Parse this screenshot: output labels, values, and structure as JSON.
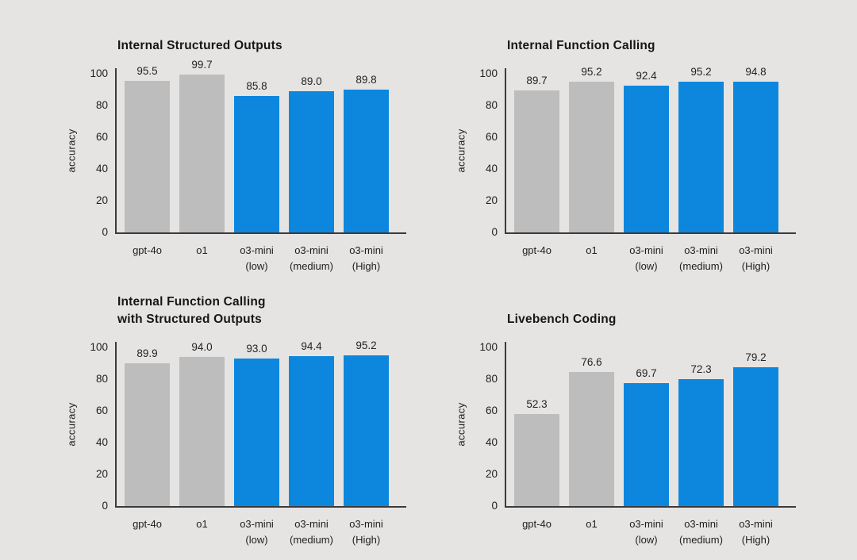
{
  "page": {
    "background_color": "#e5e4e2",
    "text_color": "#1e1e1e",
    "axis_color": "#3b3b3b",
    "bar_colors": {
      "gray": "#bdbdbd",
      "blue": "#0d87de"
    }
  },
  "chart_data": [
    {
      "id": "internal-structured-outputs",
      "type": "bar",
      "title_lines": [
        "Internal Structured Outputs"
      ],
      "ylabel": "accuracy",
      "xlabel": "",
      "ylim": [
        0,
        100
      ],
      "yticks": [
        0,
        20,
        40,
        60,
        80,
        100
      ],
      "grid": false,
      "legend": "none",
      "categories": [
        [
          "gpt-4o"
        ],
        [
          "o1"
        ],
        [
          "o3-mini",
          "(low)"
        ],
        [
          "o3-mini",
          "(medium)"
        ],
        [
          "o3-mini",
          "(High)"
        ]
      ],
      "values": [
        95.5,
        99.7,
        85.8,
        89.0,
        89.8
      ],
      "value_labels": [
        "95.5",
        "99.7",
        "85.8",
        "89.0",
        "89.8"
      ],
      "bar_color_keys": [
        "gray",
        "gray",
        "blue",
        "blue",
        "blue"
      ]
    },
    {
      "id": "internal-function-calling",
      "type": "bar",
      "title_lines": [
        "Internal Function Calling"
      ],
      "ylabel": "accuracy",
      "xlabel": "",
      "ylim": [
        0,
        100
      ],
      "yticks": [
        0,
        20,
        40,
        60,
        80,
        100
      ],
      "grid": false,
      "legend": "none",
      "categories": [
        [
          "gpt-4o"
        ],
        [
          "o1"
        ],
        [
          "o3-mini",
          "(low)"
        ],
        [
          "o3-mini",
          "(medium)"
        ],
        [
          "o3-mini",
          "(High)"
        ]
      ],
      "values": [
        89.7,
        95.2,
        92.4,
        95.2,
        94.8
      ],
      "value_labels": [
        "89.7",
        "95.2",
        "92.4",
        "95.2",
        "94.8"
      ],
      "bar_color_keys": [
        "gray",
        "gray",
        "blue",
        "blue",
        "blue"
      ]
    },
    {
      "id": "internal-function-calling-structured-outputs",
      "type": "bar",
      "title_lines": [
        "Internal Function Calling",
        "with Structured Outputs"
      ],
      "ylabel": "accuracy",
      "xlabel": "",
      "ylim": [
        0,
        100
      ],
      "yticks": [
        0,
        20,
        40,
        60,
        80,
        100
      ],
      "grid": false,
      "legend": "none",
      "categories": [
        [
          "gpt-4o"
        ],
        [
          "o1"
        ],
        [
          "o3-mini",
          "(low)"
        ],
        [
          "o3-mini",
          "(medium)"
        ],
        [
          "o3-mini",
          "(High)"
        ]
      ],
      "values": [
        89.9,
        94.0,
        93.0,
        94.4,
        95.2
      ],
      "value_labels": [
        "89.9",
        "94.0",
        "93.0",
        "94.4",
        "95.2"
      ],
      "bar_color_keys": [
        "gray",
        "gray",
        "blue",
        "blue",
        "blue"
      ]
    },
    {
      "id": "livebench-coding",
      "type": "bar",
      "title_lines": [
        "Livebench Coding"
      ],
      "ylabel": "accuracy",
      "xlabel": "",
      "ylim": [
        0,
        100
      ],
      "yticks": [
        0,
        20,
        40,
        60,
        80,
        100
      ],
      "grid": false,
      "legend": "none",
      "categories": [
        [
          "gpt-4o"
        ],
        [
          "o1"
        ],
        [
          "o3-mini",
          "(low)"
        ],
        [
          "o3-mini",
          "(medium)"
        ],
        [
          "o3-mini",
          "(High)"
        ]
      ],
      "values": [
        52.3,
        76.6,
        69.7,
        72.3,
        79.2
      ],
      "value_labels": [
        "52.3",
        "76.6",
        "69.7",
        "72.3",
        "79.2"
      ],
      "display_values": [
        57.8,
        84.5,
        77.5,
        80.0,
        87.3
      ],
      "bar_color_keys": [
        "gray",
        "gray",
        "blue",
        "blue",
        "blue"
      ]
    }
  ]
}
